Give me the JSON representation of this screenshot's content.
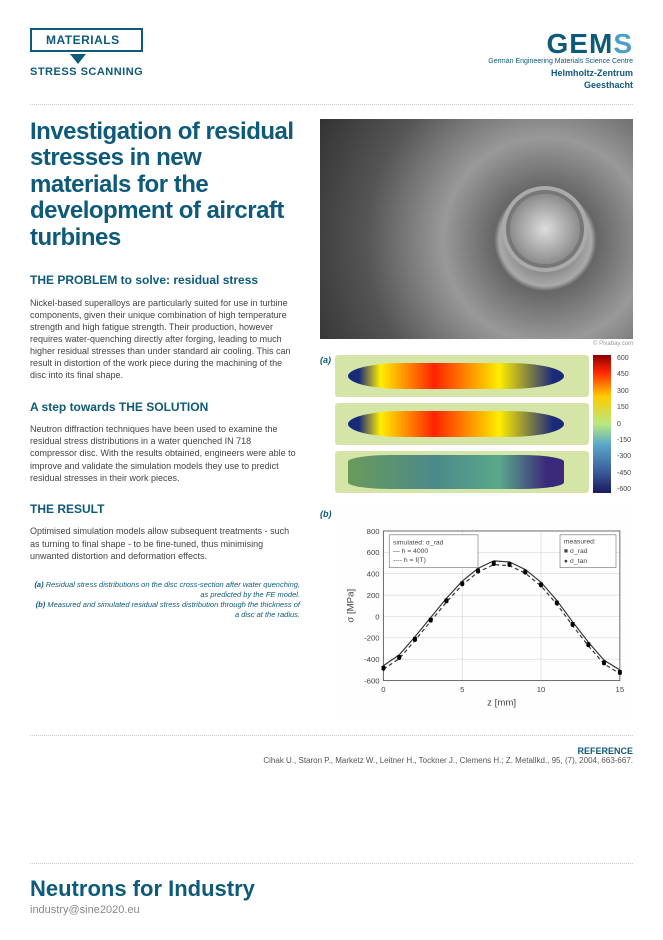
{
  "header": {
    "category_box": "MATERIALS",
    "subcategory": "STRESS SCANNING",
    "logo": {
      "main": "GEM",
      "main_s": "S",
      "sub1": "German Engineering Materials Science Centre",
      "sub2a": "Helmholtz-Zentrum",
      "sub2b": "Geesthacht"
    }
  },
  "title": "Investigation of residual stresses in new materials for the development of aircraft turbines",
  "sections": {
    "problem": {
      "heading": "THE PROBLEM to solve: residual stress",
      "text": "Nickel-based superalloys are particularly suited for use in turbine components, given their unique combination of high temperature strength and high fatigue strength.\nTheir production, however requires water-quenching directly after forging, leading to much higher residual stresses than under standard air cooling. This can result in distortion of the work piece during the machining of the disc into its final shape."
    },
    "solution": {
      "heading": "A step towards THE SOLUTION",
      "text": "Neutron diffraction techniques have been used to examine the residual stress distributions in a water quenched IN 718 compressor disc. With the results obtained, engineers were able to improve and validate the simulation models they use to predict residual stresses in their work pieces."
    },
    "result": {
      "heading": "THE RESULT",
      "text": "Optimised simulation models allow subsequent treatments - such as turning to final shape - to be fine-tuned, thus minimising unwanted distortion and deformation effects."
    }
  },
  "image_credit": "© Pixabay.com",
  "figures": {
    "a_label": "(a)",
    "b_label": "(b)",
    "colorbar": {
      "values": [
        "600",
        "450",
        "300",
        "150",
        "0",
        "-150",
        "-300",
        "-450",
        "-600"
      ]
    },
    "chart": {
      "type": "line-scatter",
      "ylim": [
        -600,
        800
      ],
      "yticks": [
        -600,
        -400,
        -200,
        0,
        200,
        400,
        600,
        800
      ],
      "xlim": [
        0,
        15
      ],
      "xticks": [
        0,
        5,
        10,
        15
      ],
      "ylabel": "σ [MPa]",
      "xlabel": "z [mm]",
      "legend_sim_title": "simulated: σ_rad",
      "legend_sim_items": [
        "— h = 4000",
        "---- h = f(T)"
      ],
      "legend_meas_title": "measured:",
      "legend_meas_items": [
        "■ σ_rad",
        "● σ_tan"
      ],
      "data_x": [
        0,
        1,
        2,
        3,
        4,
        5,
        6,
        7,
        8,
        9,
        10,
        11,
        12,
        13,
        14,
        15
      ],
      "data_rad": [
        -480,
        -380,
        -210,
        -30,
        150,
        310,
        430,
        500,
        490,
        420,
        300,
        130,
        -70,
        -260,
        -430,
        -520
      ],
      "data_tan": [
        -490,
        -390,
        -220,
        -40,
        140,
        300,
        420,
        490,
        480,
        410,
        290,
        120,
        -80,
        -270,
        -440,
        -530
      ],
      "colors": {
        "background": "#ffffff",
        "grid": "#cccccc",
        "axis": "#666666",
        "line1": "#333333",
        "line2": "#333333",
        "marker_sq": "#000000",
        "marker_ci": "#000000",
        "text": "#444444"
      },
      "line_width": 1.2,
      "marker_size": 4,
      "fontsize_label": 10,
      "fontsize_tick": 8
    }
  },
  "caption": {
    "a": "(a) Residual stress distributions on the disc cross-section after water quenching, as predicted by the FE model.",
    "b": "(b) Measured and simulated residual stress distribution through the thickness of a disc at the radius."
  },
  "reference": {
    "label": "REFERENCE",
    "text": "Cihak U., Staron P., Marketz W., Leitner H., Tockner J., Clemens H.; Z. Metallkd., 95, (7), 2004, 663-667."
  },
  "footer": {
    "title": "Neutrons for Industry",
    "email": "industry@sine2020.eu"
  }
}
